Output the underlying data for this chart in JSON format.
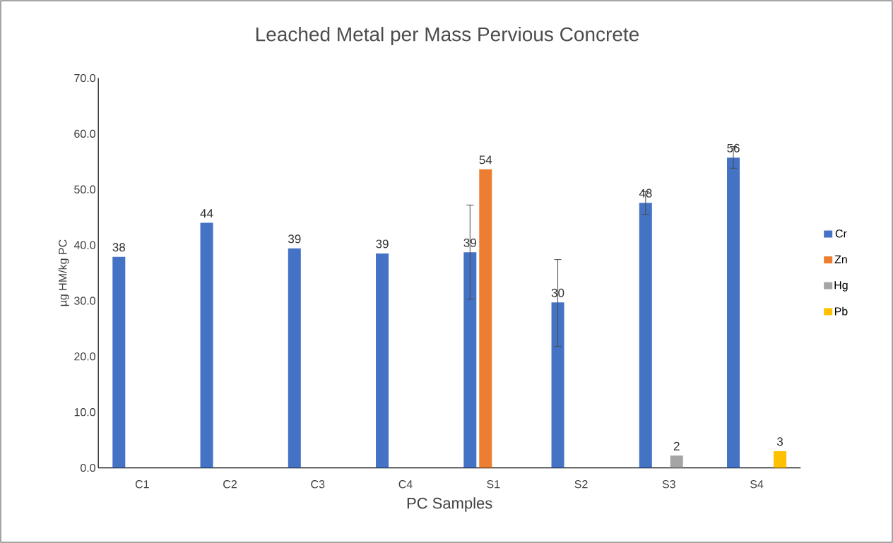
{
  "chart_data": {
    "type": "bar",
    "title": "Leached Metal per Mass Pervious Concrete",
    "xlabel": "PC Samples",
    "ylabel": "µg HM/kg PC",
    "categories": [
      "C1",
      "C2",
      "C3",
      "C4",
      "S1",
      "S2",
      "S3",
      "S4"
    ],
    "series": [
      {
        "name": "Cr",
        "color": "#4472c4",
        "values": [
          37.9,
          44.0,
          39.4,
          38.5,
          38.7,
          29.7,
          47.6,
          55.7
        ],
        "value_labels": [
          "38",
          "44",
          "39",
          "39",
          "39",
          "30",
          "48",
          "56"
        ],
        "errors": [
          null,
          null,
          null,
          null,
          [
            30.3,
            47.2
          ],
          [
            21.8,
            37.4
          ],
          [
            45.5,
            49.6
          ],
          [
            53.8,
            57.7
          ]
        ]
      },
      {
        "name": "Zn",
        "color": "#ed7d31",
        "values": [
          null,
          null,
          null,
          null,
          53.6,
          null,
          null,
          null
        ],
        "value_labels": [
          null,
          null,
          null,
          null,
          "54",
          null,
          null,
          null
        ]
      },
      {
        "name": "Hg",
        "color": "#a5a5a5",
        "values": [
          null,
          null,
          null,
          null,
          null,
          null,
          2.2,
          null
        ],
        "value_labels": [
          null,
          null,
          null,
          null,
          null,
          null,
          "2",
          null
        ]
      },
      {
        "name": "Pb",
        "color": "#ffc000",
        "values": [
          null,
          null,
          null,
          null,
          null,
          null,
          null,
          3.0
        ],
        "value_labels": [
          null,
          null,
          null,
          null,
          null,
          null,
          null,
          "3"
        ]
      }
    ],
    "ylim": [
      0,
      70
    ],
    "yticks": [
      {
        "value": 0,
        "label": "0.0"
      },
      {
        "value": 10,
        "label": "10.0"
      },
      {
        "value": 20,
        "label": "20.0"
      },
      {
        "value": 30,
        "label": "30.0"
      },
      {
        "value": 40,
        "label": "40.0"
      },
      {
        "value": 50,
        "label": "50.0"
      },
      {
        "value": 60,
        "label": "60.0"
      },
      {
        "value": 70,
        "label": "70.0"
      }
    ],
    "grid": false,
    "legend": "right"
  }
}
